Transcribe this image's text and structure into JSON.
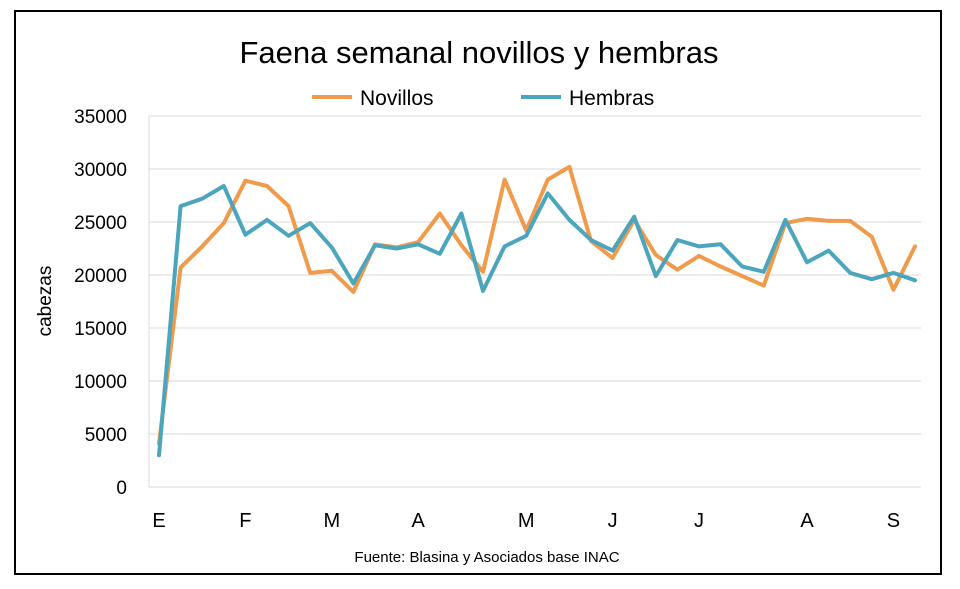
{
  "chart_data": {
    "type": "line",
    "title": "Faena semanal novillos y hembras",
    "xlabel": "",
    "ylabel": "cabezas",
    "ylim": [
      0,
      35000
    ],
    "yticks": [
      0,
      5000,
      10000,
      15000,
      20000,
      25000,
      30000,
      35000
    ],
    "month_labels": [
      {
        "label": "E",
        "index": 0
      },
      {
        "label": "F",
        "index": 4
      },
      {
        "label": "M",
        "index": 8
      },
      {
        "label": "A",
        "index": 12
      },
      {
        "label": "M",
        "index": 17
      },
      {
        "label": "J",
        "index": 21
      },
      {
        "label": "J",
        "index": 25
      },
      {
        "label": "A",
        "index": 30
      },
      {
        "label": "S",
        "index": 34
      }
    ],
    "series": [
      {
        "name": "Novillos",
        "color": "#f09a4c",
        "values": [
          4100,
          20700,
          22700,
          24900,
          28900,
          28400,
          26500,
          20200,
          20400,
          18400,
          22900,
          22600,
          23100,
          25800,
          22800,
          20300,
          29000,
          24200,
          29000,
          30200,
          23200,
          21600,
          25200,
          21900,
          20500,
          21800,
          20800,
          19900,
          19000,
          24900,
          25300,
          25100,
          25100,
          23600,
          18600,
          22700
        ]
      },
      {
        "name": "Hembras",
        "color": "#4aa5bd",
        "values": [
          3000,
          26500,
          27200,
          28400,
          23800,
          25200,
          23700,
          24900,
          22600,
          19200,
          22800,
          22500,
          22900,
          22000,
          25800,
          18500,
          22700,
          23700,
          27700,
          25200,
          23300,
          22300,
          25500,
          19900,
          23300,
          22700,
          22900,
          20800,
          20300,
          25200,
          21200,
          22300,
          20200,
          19600,
          20200,
          19500
        ]
      }
    ],
    "grid": true,
    "legend_position": "top"
  },
  "source_note": "Fuente: Blasina y Asociados base INAC"
}
